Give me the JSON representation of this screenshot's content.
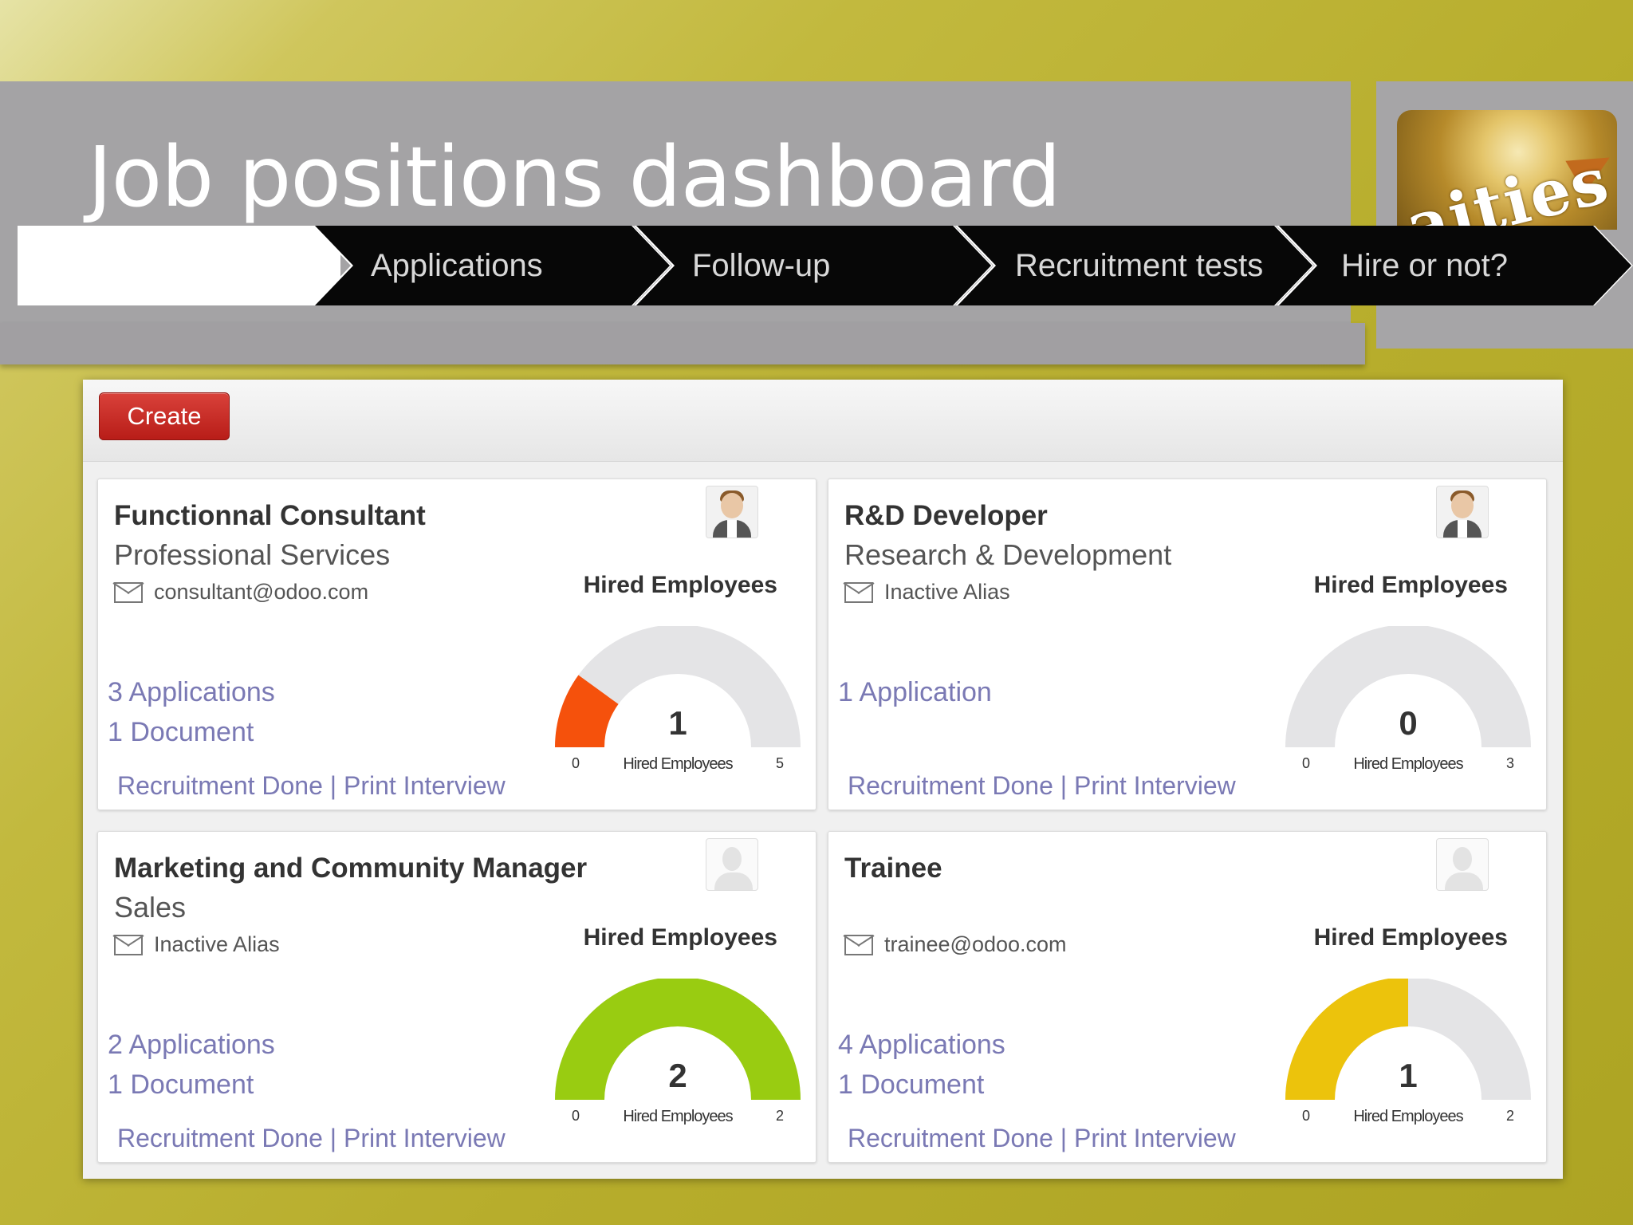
{
  "slide": {
    "title": "Job positions dashboard",
    "steps": [
      {
        "label": ""
      },
      {
        "label": "Applications"
      },
      {
        "label": "Follow-up"
      },
      {
        "label": "Recruitment tests"
      },
      {
        "label": "Hire or not?"
      }
    ],
    "logo_text": "aities"
  },
  "toolbar": {
    "create_label": "Create"
  },
  "cards": [
    {
      "title": "Functionnal Consultant",
      "department": "Professional Services",
      "alias": "consultant@odoo.com",
      "hired_heading": "Hired Employees",
      "applications": "3 Applications",
      "documents": "1 Document",
      "recruitment_done": "Recruitment Done",
      "separator": "|",
      "print_interview": "Print Interview",
      "avatar": "male-photo",
      "gauge": {
        "value": 1,
        "min": 0,
        "max": 5,
        "label": "Hired Employees",
        "value_text": "1",
        "min_text": "0",
        "max_text": "5",
        "color": "#f5510c"
      }
    },
    {
      "title": "R&D Developer",
      "department": "Research & Development",
      "alias": "Inactive Alias",
      "hired_heading": "Hired Employees",
      "applications": "1 Application",
      "documents": "",
      "recruitment_done": "Recruitment Done",
      "separator": "|",
      "print_interview": "Print Interview",
      "avatar": "male-photo",
      "gauge": {
        "value": 0,
        "min": 0,
        "max": 3,
        "label": "Hired Employees",
        "value_text": "0",
        "min_text": "0",
        "max_text": "3",
        "color": "#f5510c"
      }
    },
    {
      "title": "Marketing and Community Manager",
      "department": "Sales",
      "alias": "Inactive Alias",
      "hired_heading": "Hired Employees",
      "applications": "2 Applications",
      "documents": "1 Document",
      "recruitment_done": "Recruitment Done",
      "separator": "|",
      "print_interview": "Print Interview",
      "avatar": "placeholder",
      "gauge": {
        "value": 2,
        "min": 0,
        "max": 2,
        "label": "Hired Employees",
        "value_text": "2",
        "min_text": "0",
        "max_text": "2",
        "color": "#99cc11"
      }
    },
    {
      "title": "Trainee",
      "department": "",
      "alias": "trainee@odoo.com",
      "hired_heading": "Hired Employees",
      "applications": "4 Applications",
      "documents": "1 Document",
      "recruitment_done": "Recruitment Done",
      "separator": "|",
      "print_interview": "Print Interview",
      "avatar": "placeholder",
      "gauge": {
        "value": 1,
        "min": 0,
        "max": 2,
        "label": "Hired Employees",
        "value_text": "1",
        "min_text": "0",
        "max_text": "2",
        "color": "#ecc30c"
      }
    }
  ],
  "colors": {
    "track": "#e4e4e6",
    "link": "#7a79b4",
    "create": "#c8261f"
  }
}
